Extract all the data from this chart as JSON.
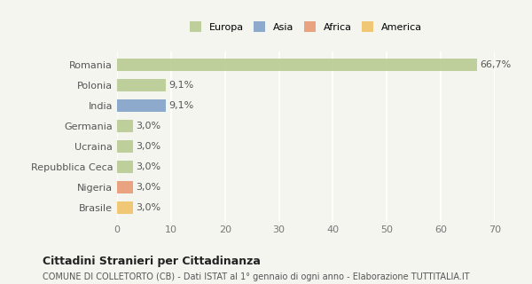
{
  "categories": [
    "Brasile",
    "Nigeria",
    "Repubblica Ceca",
    "Ucraina",
    "Germania",
    "India",
    "Polonia",
    "Romania"
  ],
  "values": [
    3.0,
    3.0,
    3.0,
    3.0,
    3.0,
    9.1,
    9.1,
    66.7
  ],
  "labels": [
    "3,0%",
    "3,0%",
    "3,0%",
    "3,0%",
    "3,0%",
    "9,1%",
    "9,1%",
    "66,7%"
  ],
  "colors": [
    "#f0c060",
    "#e8956d",
    "#b5c98e",
    "#b5c98e",
    "#b5c98e",
    "#7b9dc7",
    "#b5c98e",
    "#b5c98e"
  ],
  "legend": [
    {
      "label": "Europa",
      "color": "#b5c98e"
    },
    {
      "label": "Asia",
      "color": "#7b9dc7"
    },
    {
      "label": "Africa",
      "color": "#e8956d"
    },
    {
      "label": "America",
      "color": "#f0c060"
    }
  ],
  "xlim": [
    0,
    70
  ],
  "xticks": [
    0,
    10,
    20,
    30,
    40,
    50,
    60,
    70
  ],
  "title": "Cittadini Stranieri per Cittadinanza",
  "subtitle": "COMUNE DI COLLETORTO (CB) - Dati ISTAT al 1° gennaio di ogni anno - Elaborazione TUTTITALIA.IT",
  "background_color": "#f5f5f0",
  "bar_alpha": 0.85
}
